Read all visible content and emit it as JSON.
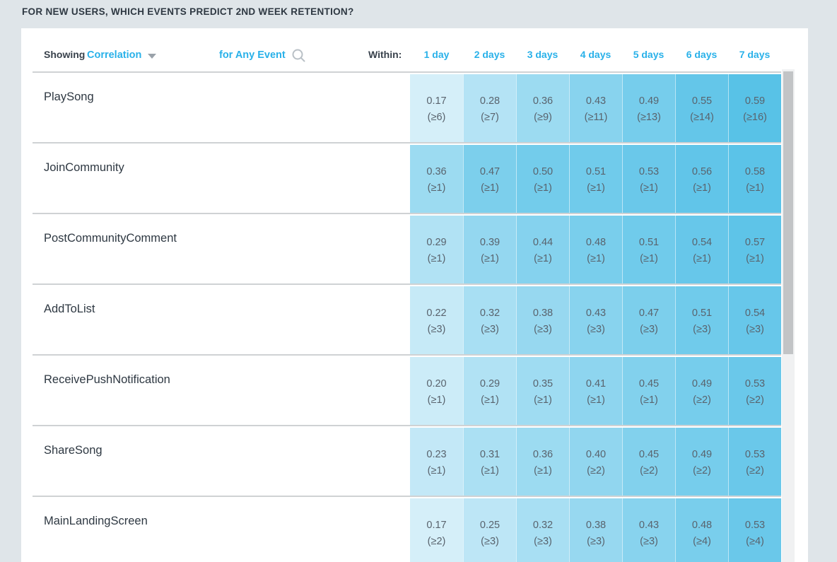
{
  "page": {
    "title": "FOR NEW USERS, WHICH EVENTS PREDICT 2ND WEEK RETENTION?"
  },
  "controls": {
    "showing_label": "Showing",
    "metric_selected": "Correlation",
    "event_filter": "for Any Event",
    "within_label": "Within:"
  },
  "columns": [
    "1 day",
    "2 days",
    "3 days",
    "4 days",
    "5 days",
    "6 days",
    "7 days"
  ],
  "rows": [
    {
      "event": "PlaySong",
      "cells": [
        {
          "value": "0.17",
          "threshold": "(≥6)"
        },
        {
          "value": "0.28",
          "threshold": "(≥7)"
        },
        {
          "value": "0.36",
          "threshold": "(≥9)"
        },
        {
          "value": "0.43",
          "threshold": "(≥11)"
        },
        {
          "value": "0.49",
          "threshold": "(≥13)"
        },
        {
          "value": "0.55",
          "threshold": "(≥14)"
        },
        {
          "value": "0.59",
          "threshold": "(≥16)"
        }
      ]
    },
    {
      "event": "JoinCommunity",
      "cells": [
        {
          "value": "0.36",
          "threshold": "(≥1)"
        },
        {
          "value": "0.47",
          "threshold": "(≥1)"
        },
        {
          "value": "0.50",
          "threshold": "(≥1)"
        },
        {
          "value": "0.51",
          "threshold": "(≥1)"
        },
        {
          "value": "0.53",
          "threshold": "(≥1)"
        },
        {
          "value": "0.56",
          "threshold": "(≥1)"
        },
        {
          "value": "0.58",
          "threshold": "(≥1)"
        }
      ]
    },
    {
      "event": "PostCommunityComment",
      "cells": [
        {
          "value": "0.29",
          "threshold": "(≥1)"
        },
        {
          "value": "0.39",
          "threshold": "(≥1)"
        },
        {
          "value": "0.44",
          "threshold": "(≥1)"
        },
        {
          "value": "0.48",
          "threshold": "(≥1)"
        },
        {
          "value": "0.51",
          "threshold": "(≥1)"
        },
        {
          "value": "0.54",
          "threshold": "(≥1)"
        },
        {
          "value": "0.57",
          "threshold": "(≥1)"
        }
      ]
    },
    {
      "event": "AddToList",
      "cells": [
        {
          "value": "0.22",
          "threshold": "(≥3)"
        },
        {
          "value": "0.32",
          "threshold": "(≥3)"
        },
        {
          "value": "0.38",
          "threshold": "(≥3)"
        },
        {
          "value": "0.43",
          "threshold": "(≥3)"
        },
        {
          "value": "0.47",
          "threshold": "(≥3)"
        },
        {
          "value": "0.51",
          "threshold": "(≥3)"
        },
        {
          "value": "0.54",
          "threshold": "(≥3)"
        }
      ]
    },
    {
      "event": "ReceivePushNotification",
      "cells": [
        {
          "value": "0.20",
          "threshold": "(≥1)"
        },
        {
          "value": "0.29",
          "threshold": "(≥1)"
        },
        {
          "value": "0.35",
          "threshold": "(≥1)"
        },
        {
          "value": "0.41",
          "threshold": "(≥1)"
        },
        {
          "value": "0.45",
          "threshold": "(≥1)"
        },
        {
          "value": "0.49",
          "threshold": "(≥2)"
        },
        {
          "value": "0.53",
          "threshold": "(≥2)"
        }
      ]
    },
    {
      "event": "ShareSong",
      "cells": [
        {
          "value": "0.23",
          "threshold": "(≥1)"
        },
        {
          "value": "0.31",
          "threshold": "(≥1)"
        },
        {
          "value": "0.36",
          "threshold": "(≥1)"
        },
        {
          "value": "0.40",
          "threshold": "(≥2)"
        },
        {
          "value": "0.45",
          "threshold": "(≥2)"
        },
        {
          "value": "0.49",
          "threshold": "(≥2)"
        },
        {
          "value": "0.53",
          "threshold": "(≥2)"
        }
      ]
    },
    {
      "event": "MainLandingScreen",
      "cells": [
        {
          "value": "0.17",
          "threshold": "(≥2)"
        },
        {
          "value": "0.25",
          "threshold": "(≥3)"
        },
        {
          "value": "0.32",
          "threshold": "(≥3)"
        },
        {
          "value": "0.38",
          "threshold": "(≥3)"
        },
        {
          "value": "0.43",
          "threshold": "(≥3)"
        },
        {
          "value": "0.48",
          "threshold": "(≥4)"
        },
        {
          "value": "0.53",
          "threshold": "(≥4)"
        }
      ]
    }
  ],
  "colors": {
    "page_background": "#dfe5e9",
    "accent_blue": "#29b1e9",
    "heat_min_color": "#dbf1fa",
    "heat_max_color": "#55c1e7",
    "heat_domain_min": 0.15,
    "heat_domain_max": 0.6,
    "cell_text": "#59636d",
    "separator": "#cfd2d4"
  },
  "icons": {
    "metric_caret": "caret-down",
    "event_search": "magnifier"
  }
}
